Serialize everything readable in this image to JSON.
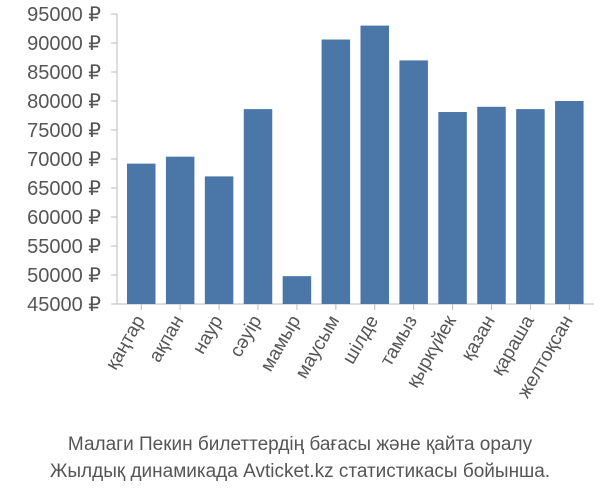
{
  "chart_data": {
    "type": "bar",
    "categories": [
      "қаңтар",
      "ақпан",
      "наур",
      "сәуір",
      "мамыр",
      "маусым",
      "шілде",
      "тамыз",
      "қыркүйек",
      "қазан",
      "қараша",
      "желтоқсан"
    ],
    "values": [
      69200,
      70400,
      67000,
      78600,
      49800,
      90600,
      93000,
      87000,
      78100,
      79000,
      78600,
      80000
    ],
    "yticks": [
      "95000 ₽",
      "90000 ₽",
      "85000 ₽",
      "80000 ₽",
      "75000 ₽",
      "70000 ₽",
      "65000 ₽",
      "60000 ₽",
      "55000 ₽",
      "50000 ₽",
      "45000 ₽"
    ],
    "ylim": [
      45000,
      95000
    ],
    "grid": false,
    "bar_color": "#4a76a8",
    "caption_line1": "Малаги Пекин билеттердің бағасы және қайта оралу",
    "caption_line2": "Жылдық динамикада Avticket.kz статистикасы бойынша."
  }
}
